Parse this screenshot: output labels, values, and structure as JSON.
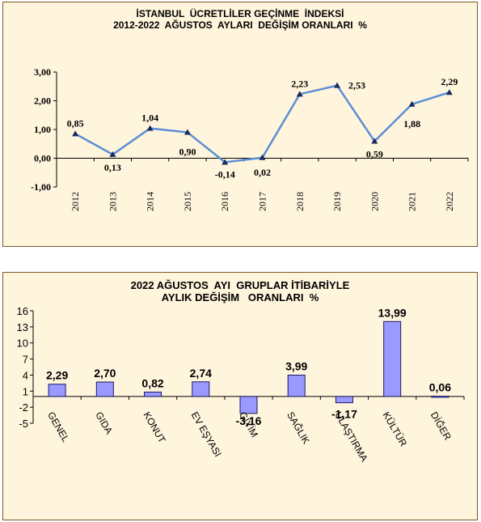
{
  "colors": {
    "panel_bg": "#fff4dc",
    "line": "#5b8fd6",
    "bar_fill": "#9999ff",
    "bar_stroke": "#1a1a66",
    "axis": "#000000"
  },
  "chart_data": [
    {
      "type": "line",
      "title_lines": [
        "İSTANBUL  ÜCRETLİLER GEÇİNME  İNDEKSİ",
        "2012-2022  AĞUSTOS  AYLARI  DEĞİŞİM ORANLARI  %"
      ],
      "categories": [
        "2012",
        "2013",
        "2014",
        "2015",
        "2016",
        "2017",
        "2018",
        "2019",
        "2020",
        "2021",
        "2022"
      ],
      "values": [
        0.85,
        0.13,
        1.04,
        0.9,
        -0.14,
        0.02,
        2.23,
        2.53,
        0.59,
        1.88,
        2.29
      ],
      "data_labels": [
        "0,85",
        "0,13",
        "1,04",
        "0,90",
        "-0,14",
        "0,02",
        "2,23",
        "2,53",
        "0,59",
        "1,88",
        "2,29"
      ],
      "yticks": [
        3,
        2,
        1,
        0,
        -1
      ],
      "ytick_labels": [
        "3,00",
        "2,00",
        "1,00",
        "0,00",
        "-1,00"
      ],
      "ylim": [
        -1,
        3
      ],
      "grid": false,
      "legend": "none"
    },
    {
      "type": "bar",
      "title_lines": [
        "2022 AĞUSTOS  AYI  GRUPLAR İTİBARİYLE",
        "AYLIK DEĞİŞİM   ORANLARI  %"
      ],
      "categories": [
        "GENEL",
        "GIDA",
        "KONUT",
        "EV EŞYASI",
        "GİYİM",
        "SAĞLIK",
        "ULAŞTIRMA",
        "KÜLTÜR",
        "DİĞER"
      ],
      "values": [
        2.29,
        2.7,
        0.82,
        2.74,
        -3.16,
        3.99,
        -1.17,
        13.99,
        0.06
      ],
      "data_labels": [
        "2,29",
        "2,70",
        "0,82",
        "2,74",
        "-3,16",
        "3,99",
        "-1,17",
        "13,99",
        "0,06"
      ],
      "yticks": [
        16,
        13,
        10,
        7,
        4,
        1,
        -2,
        -5
      ],
      "ytick_labels": [
        "16",
        "13",
        "10",
        "7",
        "4",
        "1",
        "-2",
        "-5"
      ],
      "ylim": [
        -5,
        16
      ],
      "grid": false,
      "legend": "none"
    }
  ]
}
